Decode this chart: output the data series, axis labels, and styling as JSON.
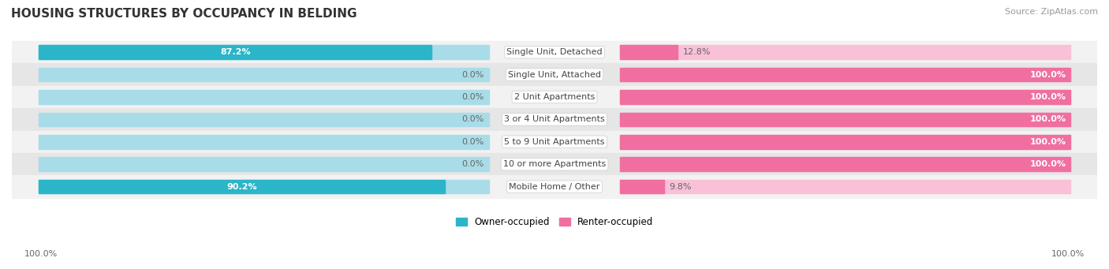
{
  "title": "HOUSING STRUCTURES BY OCCUPANCY IN BELDING",
  "source": "Source: ZipAtlas.com",
  "categories": [
    "Single Unit, Detached",
    "Single Unit, Attached",
    "2 Unit Apartments",
    "3 or 4 Unit Apartments",
    "5 to 9 Unit Apartments",
    "10 or more Apartments",
    "Mobile Home / Other"
  ],
  "owner_pct": [
    87.2,
    0.0,
    0.0,
    0.0,
    0.0,
    0.0,
    90.2
  ],
  "renter_pct": [
    12.8,
    100.0,
    100.0,
    100.0,
    100.0,
    100.0,
    9.8
  ],
  "owner_color": "#2BB5C8",
  "renter_color": "#F06FA0",
  "owner_color_light": "#A8DCE8",
  "renter_color_light": "#F9C0D8",
  "row_bg_light": "#F2F2F2",
  "row_bg_dark": "#E6E6E6",
  "legend_owner": "Owner-occupied",
  "legend_renter": "Renter-occupied",
  "axis_label_left": "100.0%",
  "axis_label_right": "100.0%",
  "title_fontsize": 11,
  "source_fontsize": 8,
  "bar_label_fontsize": 8,
  "category_fontsize": 8,
  "legend_fontsize": 8.5,
  "axis_fontsize": 8
}
